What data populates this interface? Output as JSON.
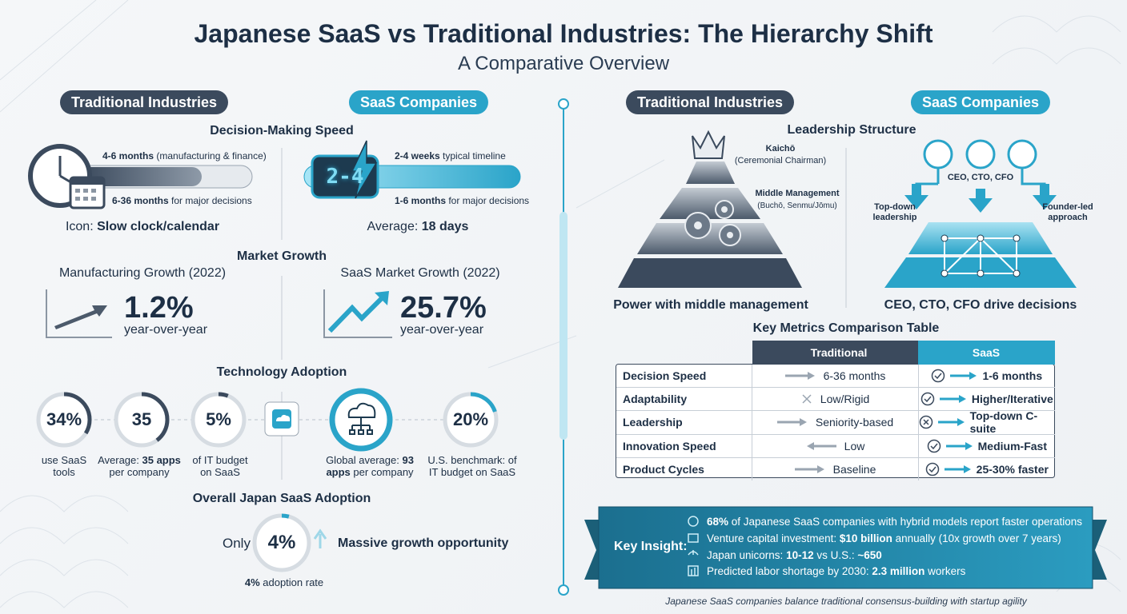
{
  "header": {
    "title": "Japanese SaaS vs Traditional Industries: The Hierarchy Shift",
    "subtitle": "A Comparative Overview"
  },
  "left": {
    "tabs": [
      "Traditional Industries",
      "SaaS Companies"
    ],
    "decision": {
      "heading": "Decision-Making Speed",
      "traditional": {
        "lines": [
          [
            {
              "text": "4-6 months",
              "bold": true
            },
            {
              "text": " (manufacturing & finance)"
            }
          ],
          [
            {
              "text": "6-36 months",
              "bold": true
            },
            {
              "text": " for major decisions"
            }
          ]
        ],
        "caption": [
          {
            "text": "Icon: "
          },
          {
            "text": "Slow clock/calendar",
            "bold": true
          }
        ]
      },
      "saas": {
        "display": "2-4",
        "lines": [
          [
            {
              "text": "2-4 weeks",
              "bold": true
            },
            {
              "text": " typical timeline"
            }
          ],
          [
            {
              "text": "1-6 months",
              "bold": true
            },
            {
              "text": " for major decisions"
            }
          ]
        ],
        "caption": [
          {
            "text": "Average: "
          },
          {
            "text": "18 days",
            "bold": true
          }
        ]
      }
    },
    "market": {
      "heading": "Market Growth",
      "traditional": {
        "label": "Manufacturing Growth (2022)",
        "value": "1.2%",
        "note": "year-over-year"
      },
      "saas": {
        "label": "SaaS Market Growth (2022)",
        "value": "25.7%",
        "note": "year-over-year"
      }
    },
    "technology": {
      "heading": "Technology Adoption",
      "stats": [
        {
          "value": "34%",
          "caption": [
            {
              "text": "use SaaS tools"
            }
          ]
        },
        {
          "value": "35",
          "caption": [
            {
              "text": "Average: "
            },
            {
              "text": "35 apps",
              "bold": true
            },
            {
              "text": " per company"
            }
          ]
        },
        {
          "value": "5%",
          "caption": [
            {
              "text": "of IT budget on SaaS"
            }
          ]
        },
        {
          "caption": [
            {
              "text": "Global average: "
            },
            {
              "text": "93 apps",
              "bold": true
            },
            {
              "text": " per company"
            }
          ]
        },
        {
          "value": "20%",
          "caption": [
            {
              "text": "U.S. benchmark: of IT budget on SaaS"
            }
          ]
        }
      ]
    },
    "overall": {
      "heading": "Overall Japan SaaS Adoption",
      "prefix": "Only",
      "value": "4%",
      "message": "Massive growth opportunity",
      "caption": [
        {
          "text": "4%",
          "bold": true
        },
        {
          "text": " adoption rate"
        }
      ]
    }
  },
  "right": {
    "tabs": [
      "Traditional Industries",
      "SaaS Companies"
    ],
    "leadership": {
      "heading": "Leadership Structure",
      "traditional": {
        "top": "Kaichō",
        "top_note": "(Ceremonial Chairman)",
        "middle": "Middle Management",
        "middle_note": "(Buchō, Senmu/Jōmu)",
        "caption": "Power with middle management"
      },
      "saas": {
        "executives": "CEO, CTO, CFO",
        "left_note": "Top-down leadership",
        "right_note": "Founder-led approach",
        "caption": "CEO, CTO, CFO drive decisions"
      }
    },
    "table": {
      "title": "Key Metrics Comparison Table",
      "columns": [
        "Traditional",
        "SaaS"
      ],
      "rows": [
        [
          "Decision Speed",
          "6-36 months",
          "1-6 months"
        ],
        [
          "Adaptability",
          "Low/Rigid",
          "Higher/Iterative"
        ],
        [
          "Leadership",
          "Seniority-based",
          "Top-down C-suite"
        ],
        [
          "Innovation Speed",
          "Low",
          "Medium-Fast"
        ],
        [
          "Product Cycles",
          "Baseline",
          "25-30% faster"
        ]
      ]
    },
    "insight": {
      "label": "Key Insight:",
      "items": [
        [
          {
            "text": "68%",
            "bold": true
          },
          {
            "text": " of Japanese SaaS companies with hybrid models report faster operations"
          }
        ],
        [
          {
            "text": "Venture capital investment: "
          },
          {
            "text": "$10 billion",
            "bold": true
          },
          {
            "text": " annually (10x growth over 7 years)"
          }
        ],
        [
          {
            "text": "Japan unicorns: "
          },
          {
            "text": "10-12",
            "bold": true
          },
          {
            "text": " vs U.S.: "
          },
          {
            "text": "~650",
            "bold": true
          }
        ],
        [
          {
            "text": "Predicted labor shortage by 2030: "
          },
          {
            "text": "2.3 million",
            "bold": true
          },
          {
            "text": " workers"
          }
        ]
      ]
    },
    "footer": "Japanese SaaS companies balance traditional consensus-building with startup agility"
  }
}
